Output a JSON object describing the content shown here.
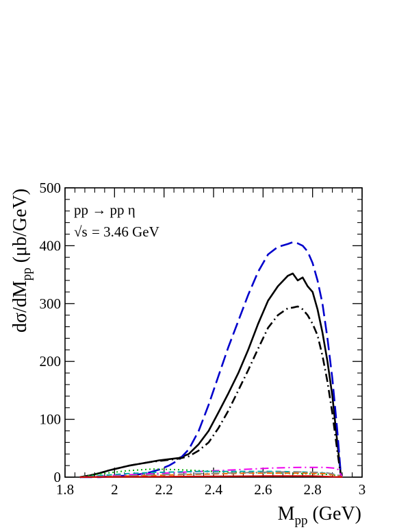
{
  "chart_data": {
    "type": "line",
    "title": "",
    "xlabel": "M",
    "xlabel_sub": "pp",
    "xlabel_unit": " (GeV)",
    "ylabel": "dσ/dM",
    "ylabel_sub": "pp",
    "ylabel_unit": " (μb/GeV)",
    "xlim": [
      1.8,
      3.0
    ],
    "ylim": [
      0,
      500
    ],
    "xticks": [
      1.8,
      2.0,
      2.2,
      2.4,
      2.6,
      2.8,
      3.0
    ],
    "xtick_labels": [
      "1.8",
      "2",
      "2.2",
      "2.4",
      "2.6",
      "2.8",
      "3"
    ],
    "yticks": [
      0,
      100,
      200,
      300,
      400,
      500
    ],
    "ytick_labels": [
      "0",
      "100",
      "200",
      "300",
      "400",
      "500"
    ],
    "grid": false,
    "legend": "none",
    "annotation_reaction": "pp → pp η",
    "annotation_energy_root": "√s",
    "annotation_energy": "= 3.46 GeV",
    "series": [
      {
        "style": "solid",
        "color": "#000000",
        "x": [
          1.86,
          1.9,
          1.94,
          1.98,
          2.02,
          2.06,
          2.1,
          2.14,
          2.18,
          2.22,
          2.26,
          2.3,
          2.34,
          2.38,
          2.42,
          2.46,
          2.5,
          2.54,
          2.58,
          2.62,
          2.66,
          2.7,
          2.72,
          2.74,
          2.76,
          2.78,
          2.8,
          2.82,
          2.84,
          2.86,
          2.88,
          2.9,
          2.915
        ],
        "y": [
          0,
          3,
          7,
          12,
          16,
          20,
          23,
          26,
          29,
          31,
          33,
          40,
          57,
          80,
          112,
          145,
          180,
          220,
          265,
          305,
          330,
          348,
          352,
          340,
          345,
          330,
          320,
          290,
          250,
          200,
          140,
          60,
          0
        ]
      },
      {
        "style": "longdash",
        "color": "#0000cc",
        "x": [
          1.86,
          1.9,
          1.94,
          1.98,
          2.02,
          2.06,
          2.1,
          2.14,
          2.18,
          2.22,
          2.26,
          2.3,
          2.34,
          2.38,
          2.42,
          2.46,
          2.5,
          2.54,
          2.58,
          2.62,
          2.66,
          2.7,
          2.72,
          2.74,
          2.76,
          2.78,
          2.8,
          2.82,
          2.84,
          2.86,
          2.88,
          2.9,
          2.915
        ],
        "y": [
          0,
          0,
          0,
          1,
          2,
          3,
          5,
          8,
          13,
          20,
          30,
          48,
          80,
          125,
          175,
          225,
          270,
          315,
          355,
          385,
          398,
          403,
          406,
          404,
          400,
          390,
          370,
          340,
          300,
          240,
          170,
          80,
          0
        ]
      },
      {
        "style": "dashdot",
        "color": "#000000",
        "x": [
          1.86,
          1.9,
          1.94,
          1.98,
          2.02,
          2.06,
          2.1,
          2.14,
          2.18,
          2.22,
          2.26,
          2.3,
          2.34,
          2.38,
          2.42,
          2.46,
          2.5,
          2.54,
          2.58,
          2.62,
          2.66,
          2.7,
          2.72,
          2.74,
          2.76,
          2.78,
          2.8,
          2.82,
          2.84,
          2.86,
          2.88,
          2.9,
          2.915
        ],
        "y": [
          0,
          3,
          7,
          12,
          16,
          20,
          23,
          26,
          28,
          30,
          32,
          36,
          46,
          60,
          85,
          115,
          150,
          185,
          222,
          258,
          280,
          292,
          293,
          295,
          290,
          280,
          265,
          245,
          210,
          165,
          110,
          45,
          0
        ]
      },
      {
        "style": "dashdot",
        "color": "#ee00ee",
        "x": [
          1.86,
          1.95,
          2.05,
          2.15,
          2.25,
          2.35,
          2.45,
          2.55,
          2.65,
          2.75,
          2.85,
          2.9,
          2.92
        ],
        "y": [
          0,
          2,
          4,
          6,
          8,
          10,
          12,
          14,
          16,
          17,
          17,
          15,
          0
        ]
      },
      {
        "style": "dotted",
        "color": "#00aa00",
        "x": [
          1.86,
          1.95,
          2.05,
          2.15,
          2.25,
          2.35,
          2.45,
          2.55,
          2.65,
          2.75,
          2.85,
          2.9,
          2.92
        ],
        "y": [
          0,
          6,
          11,
          14,
          13,
          11,
          9,
          8,
          7,
          6,
          5,
          3,
          0
        ]
      },
      {
        "style": "dashed",
        "color": "#00aaaa",
        "x": [
          1.86,
          1.95,
          2.05,
          2.15,
          2.25,
          2.35,
          2.45,
          2.55,
          2.65,
          2.75,
          2.85,
          2.9,
          2.92
        ],
        "y": [
          0,
          3,
          6,
          8,
          9,
          10,
          10,
          10,
          10,
          9,
          7,
          4,
          0
        ]
      },
      {
        "style": "dashed",
        "color": "#ff6600",
        "x": [
          1.86,
          1.95,
          2.05,
          2.15,
          2.25,
          2.35,
          2.45,
          2.55,
          2.65,
          2.75,
          2.85,
          2.9,
          2.92
        ],
        "y": [
          0,
          1,
          2,
          3,
          4,
          5,
          6,
          7,
          7,
          7,
          6,
          3,
          0
        ]
      },
      {
        "style": "dashdot",
        "color": "#888888",
        "x": [
          1.86,
          1.95,
          2.05,
          2.15,
          2.25,
          2.35,
          2.45,
          2.55,
          2.65,
          2.75,
          2.85,
          2.9,
          2.92
        ],
        "y": [
          0,
          1,
          2,
          4,
          5,
          6,
          7,
          8,
          9,
          9,
          8,
          4,
          0
        ]
      },
      {
        "style": "solid",
        "color": "#cc0000",
        "x": [
          1.86,
          2.0,
          2.2,
          2.4,
          2.6,
          2.8,
          2.92
        ],
        "y": [
          0,
          0.5,
          1,
          1.5,
          2,
          2,
          0
        ]
      }
    ]
  }
}
